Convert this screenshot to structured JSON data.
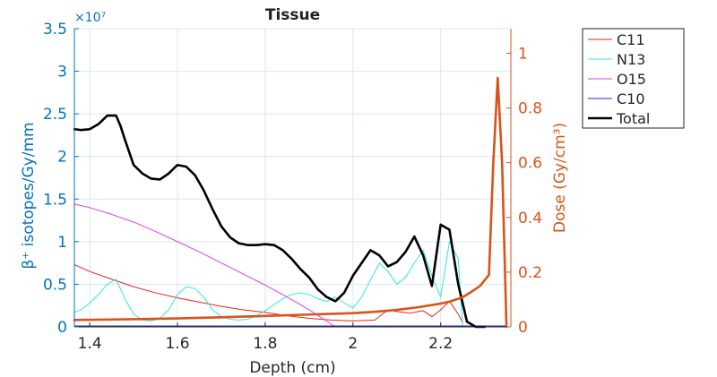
{
  "colors": {
    "left_axis": "#0072BD",
    "right_axis": "#D95319",
    "grid": "#dce6ef",
    "c11": "#e8251c",
    "n13": "#2ee8e0",
    "o15": "#e53de6",
    "c10": "#2a2ad6",
    "total": "#000000",
    "dose": "#D95319"
  },
  "chart_data": {
    "type": "line",
    "title": "Tissue",
    "xlabel": "Depth (cm)",
    "ylabel_left": "β⁺ isotopes/Gy/mm",
    "ylabel_right": "Dose (Gy/cm³)",
    "exponent_label": "×10⁷",
    "xlim": [
      1.365,
      2.36
    ],
    "ylim_left": [
      0,
      3.5
    ],
    "ylim_right": [
      0,
      1.09
    ],
    "x_ticks": [
      1.4,
      1.6,
      1.8,
      2.0,
      2.2
    ],
    "x_tick_labels": [
      "1.4",
      "1.6",
      "1.8",
      "2",
      "2.2"
    ],
    "y_left_ticks": [
      0,
      0.5,
      1,
      1.5,
      2,
      2.5,
      3,
      3.5
    ],
    "y_left_tick_labels": [
      "0",
      "0.5",
      "1",
      "1.5",
      "2",
      "2.5",
      "3",
      "3.5"
    ],
    "y_right_ticks": [
      0,
      0.2,
      0.4,
      0.6,
      0.8,
      1
    ],
    "y_right_tick_labels": [
      "0",
      "0.2",
      "0.4",
      "0.6",
      "0.8",
      "1"
    ],
    "grid": true,
    "legend": {
      "position": "outside-top-right",
      "entries": [
        "C11",
        "N13",
        "O15",
        "C10",
        "Total"
      ]
    },
    "series": [
      {
        "name": "C11",
        "axis": "left",
        "x": [
          1.365,
          1.4,
          1.45,
          1.5,
          1.55,
          1.6,
          1.65,
          1.7,
          1.75,
          1.8,
          1.85,
          1.9,
          1.95,
          2.0,
          2.05,
          2.08,
          2.1,
          2.13,
          2.16,
          2.18,
          2.2,
          2.22,
          2.24,
          2.25
        ],
        "y": [
          0.73,
          0.65,
          0.56,
          0.47,
          0.4,
          0.34,
          0.29,
          0.24,
          0.2,
          0.17,
          0.13,
          0.1,
          0.08,
          0.07,
          0.08,
          0.2,
          0.18,
          0.16,
          0.19,
          0.12,
          0.2,
          0.3,
          0.15,
          0.05
        ]
      },
      {
        "name": "N13",
        "axis": "left",
        "x": [
          1.365,
          1.38,
          1.4,
          1.42,
          1.44,
          1.46,
          1.48,
          1.5,
          1.52,
          1.54,
          1.56,
          1.58,
          1.6,
          1.62,
          1.64,
          1.66,
          1.68,
          1.7,
          1.72,
          1.74,
          1.76,
          1.78,
          1.8,
          1.82,
          1.84,
          1.86,
          1.88,
          1.9,
          1.92,
          1.94,
          1.96,
          1.98,
          2.0,
          2.02,
          2.04,
          2.06,
          2.08,
          2.1,
          2.12,
          2.14,
          2.16,
          2.18,
          2.2,
          2.22,
          2.24,
          2.25
        ],
        "y": [
          0.17,
          0.2,
          0.28,
          0.38,
          0.5,
          0.56,
          0.33,
          0.15,
          0.08,
          0.07,
          0.1,
          0.2,
          0.38,
          0.47,
          0.45,
          0.35,
          0.2,
          0.12,
          0.09,
          0.08,
          0.09,
          0.13,
          0.19,
          0.26,
          0.33,
          0.38,
          0.4,
          0.38,
          0.33,
          0.3,
          0.35,
          0.28,
          0.22,
          0.35,
          0.55,
          0.75,
          0.65,
          0.5,
          0.58,
          0.75,
          0.9,
          0.6,
          0.35,
          1.0,
          0.8,
          0.0
        ]
      },
      {
        "name": "O15",
        "axis": "left",
        "x": [
          1.365,
          1.4,
          1.45,
          1.5,
          1.55,
          1.6,
          1.65,
          1.7,
          1.75,
          1.8,
          1.85,
          1.9,
          1.93,
          1.96,
          2.0
        ],
        "y": [
          1.44,
          1.4,
          1.32,
          1.23,
          1.12,
          1.0,
          0.88,
          0.75,
          0.62,
          0.49,
          0.35,
          0.2,
          0.1,
          0.0,
          0.0
        ]
      },
      {
        "name": "C10",
        "axis": "left",
        "x": [
          1.365,
          2.35
        ],
        "y": [
          0.01,
          0.01
        ]
      },
      {
        "name": "Total",
        "axis": "left",
        "x": [
          1.365,
          1.38,
          1.4,
          1.42,
          1.44,
          1.46,
          1.47,
          1.48,
          1.5,
          1.52,
          1.54,
          1.56,
          1.58,
          1.6,
          1.62,
          1.64,
          1.66,
          1.68,
          1.7,
          1.72,
          1.74,
          1.76,
          1.78,
          1.8,
          1.82,
          1.84,
          1.86,
          1.88,
          1.9,
          1.92,
          1.94,
          1.96,
          1.98,
          2.0,
          2.02,
          2.04,
          2.06,
          2.08,
          2.1,
          2.12,
          2.14,
          2.16,
          2.18,
          2.2,
          2.22,
          2.24,
          2.26,
          2.28,
          2.3
        ],
        "y": [
          2.32,
          2.31,
          2.32,
          2.38,
          2.48,
          2.48,
          2.36,
          2.2,
          1.9,
          1.8,
          1.74,
          1.73,
          1.8,
          1.9,
          1.88,
          1.78,
          1.6,
          1.38,
          1.18,
          1.05,
          0.98,
          0.96,
          0.96,
          0.97,
          0.96,
          0.9,
          0.8,
          0.68,
          0.58,
          0.44,
          0.35,
          0.3,
          0.4,
          0.6,
          0.75,
          0.9,
          0.84,
          0.71,
          0.76,
          0.88,
          1.06,
          0.84,
          0.48,
          1.2,
          1.14,
          0.5,
          0.06,
          0.0,
          0.0
        ]
      },
      {
        "name": "",
        "axis": "right",
        "x": [
          1.365,
          1.5,
          1.6,
          1.7,
          1.8,
          1.9,
          2.0,
          2.05,
          2.1,
          2.15,
          2.2,
          2.22,
          2.25,
          2.27,
          2.29,
          2.31,
          2.32,
          2.33,
          2.34,
          2.35
        ],
        "y": [
          0.025,
          0.028,
          0.031,
          0.035,
          0.04,
          0.045,
          0.05,
          0.055,
          0.062,
          0.072,
          0.085,
          0.092,
          0.108,
          0.128,
          0.15,
          0.19,
          0.6,
          0.91,
          0.6,
          0.0
        ]
      }
    ]
  }
}
